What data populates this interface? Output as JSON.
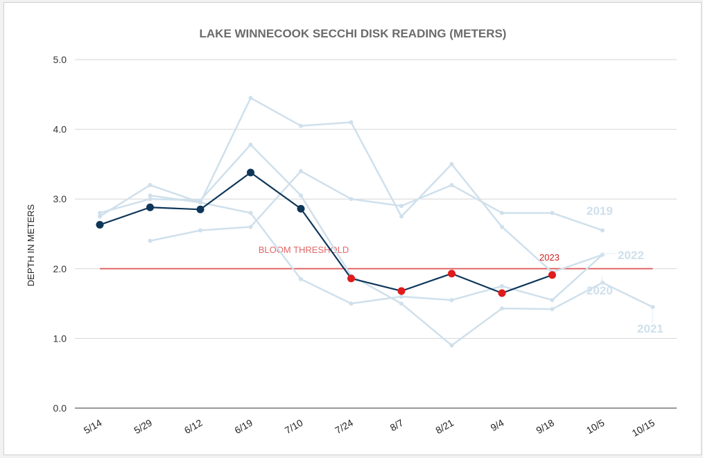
{
  "chart_data": {
    "type": "line",
    "title": "LAKE WINNECOOK SECCHI DISK READING (METERS)",
    "xlabel": "",
    "ylabel": "DEPTH IN METERS",
    "ylim": [
      0,
      5
    ],
    "yticks": [
      "0.0",
      "1.0",
      "2.0",
      "3.0",
      "4.0",
      "5.0"
    ],
    "categories": [
      "5/14",
      "5/29",
      "6/12",
      "6/19",
      "7/10",
      "7/24",
      "8/7",
      "8/21",
      "9/4",
      "9/18",
      "10/5",
      "10/15"
    ],
    "threshold": {
      "label": "BLOOM THRESHOLD",
      "value": 2.0,
      "color": "#e06666"
    },
    "grid": true,
    "series": [
      {
        "name": "2019",
        "color": "#cfe0ec",
        "values": [
          2.75,
          3.2,
          2.95,
          4.45,
          4.05,
          4.1,
          2.75,
          3.5,
          2.6,
          1.95,
          2.2,
          null
        ]
      },
      {
        "name": "2022",
        "color": "#cfe0ec",
        "values": [
          null,
          3.05,
          2.95,
          2.8,
          1.85,
          1.5,
          1.6,
          1.55,
          1.75,
          1.55,
          2.2,
          null
        ]
      },
      {
        "name": "2020",
        "color": "#cfe0ec",
        "values": [
          2.8,
          3.0,
          2.98,
          3.78,
          3.05,
          1.9,
          1.5,
          0.9,
          1.43,
          1.42,
          1.8,
          1.45
        ]
      },
      {
        "name": "2021",
        "color": "#cfe0ec",
        "values": [
          null,
          2.4,
          2.55,
          2.6,
          3.4,
          3.0,
          2.9,
          3.2,
          2.8,
          2.8,
          2.55,
          null
        ]
      },
      {
        "name": "2023",
        "color": "#0d3659",
        "values": [
          2.63,
          2.88,
          2.85,
          3.38,
          2.86,
          1.86,
          1.68,
          1.93,
          1.65,
          1.91,
          null,
          null
        ]
      }
    ],
    "highlight": {
      "series": "2023",
      "below_threshold_color": "#e01b1b"
    },
    "series_labels": [
      "2019",
      "2022",
      "2020",
      "2021",
      "2023"
    ]
  }
}
